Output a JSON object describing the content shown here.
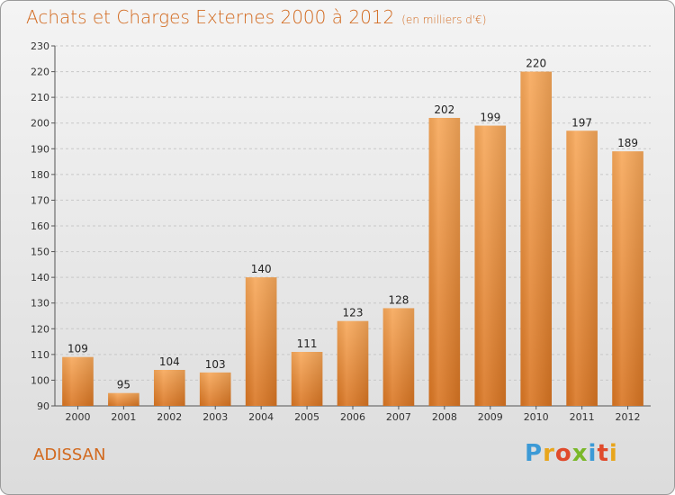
{
  "title": "Achats et Charges Externes 2000 à 2012",
  "subtitle": "(en milliers d'€)",
  "commune": "ADISSAN",
  "logo_letters": [
    "P",
    "r",
    "o",
    "x",
    "i",
    "t",
    "i"
  ],
  "colors": {
    "bar_light": "#f7a85a",
    "bar_dark": "#d97522",
    "accent": "#d2691e"
  },
  "chart_data": {
    "type": "bar",
    "title": "Achats et Charges Externes 2000 à 2012",
    "subtitle": "(en milliers d'€)",
    "categories": [
      "2000",
      "2001",
      "2002",
      "2003",
      "2004",
      "2005",
      "2006",
      "2007",
      "2008",
      "2009",
      "2010",
      "2011",
      "2012"
    ],
    "values": [
      109,
      95,
      104,
      103,
      140,
      111,
      123,
      128,
      202,
      199,
      220,
      197,
      189
    ],
    "ylim": [
      90,
      230
    ],
    "yticks": [
      90,
      100,
      110,
      120,
      130,
      140,
      150,
      160,
      170,
      180,
      190,
      200,
      210,
      220,
      230
    ],
    "xlabel": "",
    "ylabel": "",
    "grid": true
  }
}
